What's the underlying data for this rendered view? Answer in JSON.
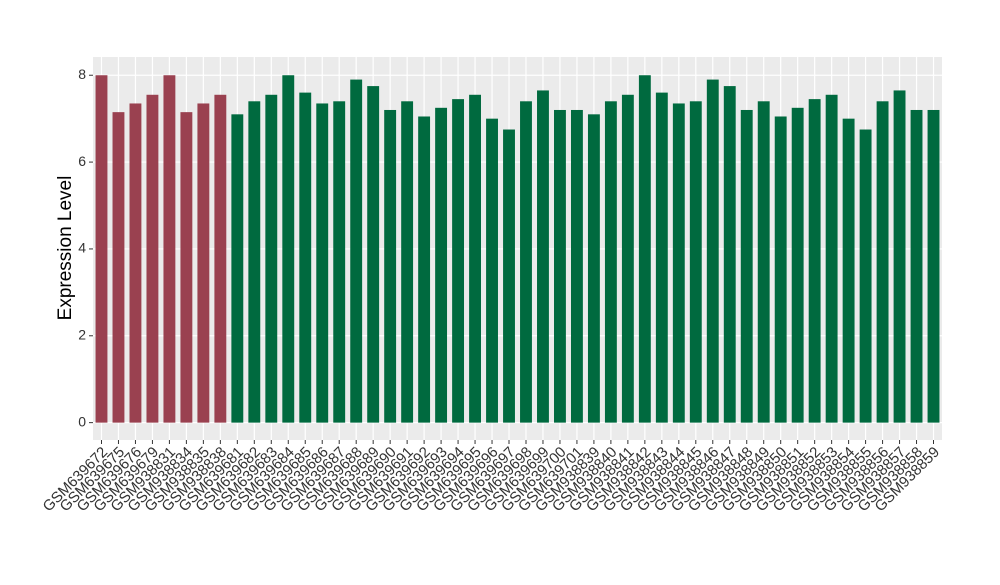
{
  "chart_data": {
    "type": "bar",
    "y_label": "Expression Level",
    "categories": [
      "GSM639672",
      "GSM639675",
      "GSM639676",
      "GSM639679",
      "GSM938831",
      "GSM938834",
      "GSM938835",
      "GSM938838",
      "GSM639681",
      "GSM639682",
      "GSM639683",
      "GSM639684",
      "GSM639685",
      "GSM639686",
      "GSM639687",
      "GSM639688",
      "GSM639689",
      "GSM639690",
      "GSM639691",
      "GSM639692",
      "GSM639693",
      "GSM639694",
      "GSM639695",
      "GSM639696",
      "GSM639697",
      "GSM639698",
      "GSM639699",
      "GSM639700",
      "GSM639701",
      "GSM938839",
      "GSM938840",
      "GSM938841",
      "GSM938842",
      "GSM938843",
      "GSM938844",
      "GSM938845",
      "GSM938846",
      "GSM938847",
      "GSM938848",
      "GSM938849",
      "GSM938850",
      "GSM938851",
      "GSM938852",
      "GSM938853",
      "GSM938854",
      "GSM938855",
      "GSM938856",
      "GSM938857",
      "GSM938858",
      "GSM938859"
    ],
    "values": [
      8.0,
      7.15,
      7.35,
      7.55,
      8.0,
      7.15,
      7.35,
      7.55,
      7.1,
      7.4,
      7.55,
      8.0,
      7.6,
      7.35,
      7.4,
      7.9,
      7.75,
      7.2,
      7.4,
      7.05,
      7.25,
      7.45,
      7.55,
      7.0,
      6.75,
      7.4,
      7.65,
      7.2,
      7.2,
      7.1,
      7.4,
      7.55,
      8.0,
      7.6,
      7.35,
      7.4,
      7.9,
      7.75,
      7.2,
      7.4,
      7.05,
      7.25,
      7.45,
      7.55,
      7.0,
      6.75,
      7.4,
      7.65,
      7.2,
      7.2
    ],
    "colors": [
      "#9a4150",
      "#9a4150",
      "#9a4150",
      "#9a4150",
      "#9a4150",
      "#9a4150",
      "#9a4150",
      "#9a4150",
      "#006a3f",
      "#006a3f",
      "#006a3f",
      "#006a3f",
      "#006a3f",
      "#006a3f",
      "#006a3f",
      "#006a3f",
      "#006a3f",
      "#006a3f",
      "#006a3f",
      "#006a3f",
      "#006a3f",
      "#006a3f",
      "#006a3f",
      "#006a3f",
      "#006a3f",
      "#006a3f",
      "#006a3f",
      "#006a3f",
      "#006a3f",
      "#006a3f",
      "#006a3f",
      "#006a3f",
      "#006a3f",
      "#006a3f",
      "#006a3f",
      "#006a3f",
      "#006a3f",
      "#006a3f",
      "#006a3f",
      "#006a3f",
      "#006a3f",
      "#006a3f",
      "#006a3f",
      "#006a3f",
      "#006a3f",
      "#006a3f",
      "#006a3f",
      "#006a3f",
      "#006a3f",
      "#006a3f"
    ],
    "ylim": [
      -0.4,
      8.42
    ],
    "yticks": [
      0,
      2,
      4,
      6,
      8
    ],
    "grid": true
  }
}
